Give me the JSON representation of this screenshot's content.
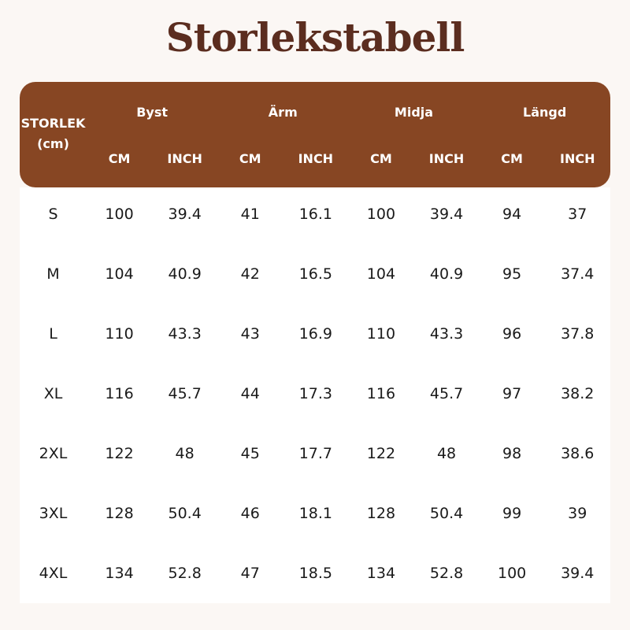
{
  "title": "Storlekstabell",
  "table": {
    "corner": "STORLEK (cm)",
    "groups": [
      "Byst",
      "Ärm",
      "Midja",
      "Längd"
    ],
    "subheaders": [
      "CM",
      "INCH",
      "CM",
      "INCH",
      "CM",
      "INCH",
      "CM",
      "INCH"
    ],
    "rows": [
      [
        "S",
        100,
        39.4,
        41,
        16.1,
        100,
        39.4,
        94,
        37
      ],
      [
        "M",
        104,
        40.9,
        42,
        16.5,
        104,
        40.9,
        95,
        37.4
      ],
      [
        "L",
        110,
        43.3,
        43,
        16.9,
        110,
        43.3,
        96,
        37.8
      ],
      [
        "XL",
        116,
        45.7,
        44,
        17.3,
        116,
        45.7,
        97,
        38.2
      ],
      [
        "2XL",
        122,
        48,
        45,
        17.7,
        122,
        48,
        98,
        38.6
      ],
      [
        "3XL",
        128,
        50.4,
        46,
        18.1,
        128,
        50.4,
        99,
        39
      ],
      [
        "4XL",
        134,
        52.8,
        47,
        18.5,
        134,
        52.8,
        100,
        39.4
      ]
    ]
  }
}
